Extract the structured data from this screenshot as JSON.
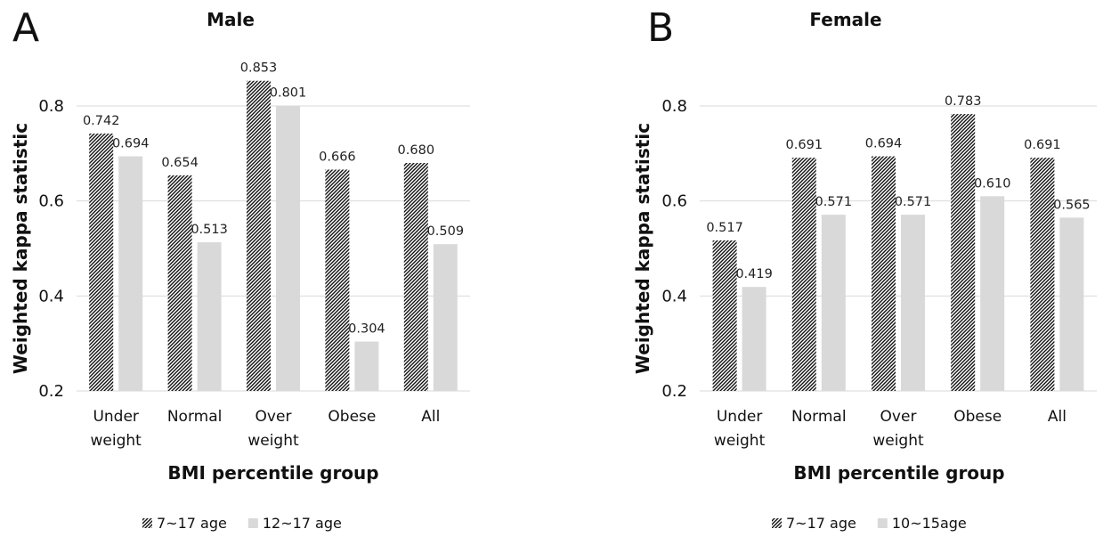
{
  "chart_data": [
    {
      "type": "bar",
      "panel": "A",
      "title": "Male",
      "xlabel": "BMI percentile group",
      "ylabel": "Weighted kappa statistic",
      "ylim": [
        0.2,
        0.8
      ],
      "yticks": [
        "0.2",
        "0.4",
        "0.6",
        "0.8"
      ],
      "categories": [
        [
          "Under",
          "weight"
        ],
        [
          "Normal"
        ],
        [
          "Over",
          "weight"
        ],
        [
          "Obese"
        ],
        [
          "All"
        ]
      ],
      "series": [
        {
          "name": "7~17 age",
          "pattern": "hatched",
          "color": "#1a1a1a",
          "values": [
            0.742,
            0.654,
            0.853,
            0.666,
            0.68
          ],
          "labels": [
            "0.742",
            "0.654",
            "0.853",
            "0.666",
            "0.680"
          ]
        },
        {
          "name": "12~17 age",
          "pattern": "solid",
          "color": "#d9d9d9",
          "values": [
            0.694,
            0.513,
            0.801,
            0.304,
            0.509
          ],
          "labels": [
            "0.694",
            "0.513",
            "0.801",
            "0.304",
            "0.509"
          ]
        }
      ],
      "grid": true,
      "legend": "bottom"
    },
    {
      "type": "bar",
      "panel": "B",
      "title": "Female",
      "xlabel": "BMI percentile group",
      "ylabel": "Weighted kappa statistic",
      "ylim": [
        0.2,
        0.8
      ],
      "yticks": [
        "0.2",
        "0.4",
        "0.6",
        "0.8"
      ],
      "categories": [
        [
          "Under",
          "weight"
        ],
        [
          "Normal"
        ],
        [
          "Over",
          "weight"
        ],
        [
          "Obese"
        ],
        [
          "All"
        ]
      ],
      "series": [
        {
          "name": "7~17 age",
          "pattern": "hatched",
          "color": "#1a1a1a",
          "values": [
            0.517,
            0.691,
            0.694,
            0.783,
            0.691
          ],
          "labels": [
            "0.517",
            "0.691",
            "0.694",
            "0.783",
            "0.691"
          ]
        },
        {
          "name": "10~15age",
          "pattern": "solid",
          "color": "#d9d9d9",
          "values": [
            0.419,
            0.571,
            0.571,
            0.61,
            0.565
          ],
          "labels": [
            "0.419",
            "0.571",
            "0.571",
            "0.610",
            "0.565"
          ]
        }
      ],
      "grid": true,
      "legend": "bottom"
    }
  ]
}
